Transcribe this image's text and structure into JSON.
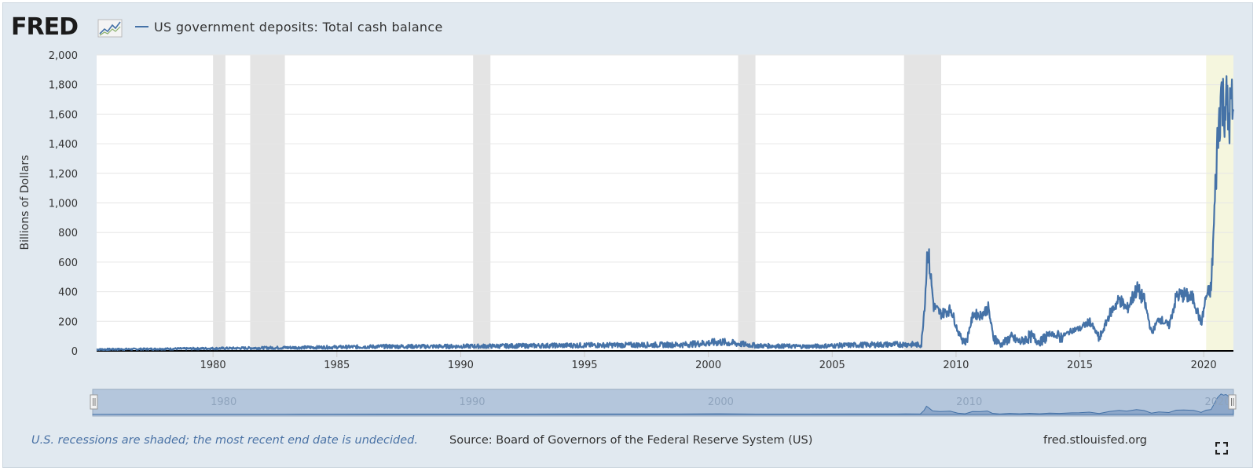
{
  "logo": {
    "text": "FRED",
    "icon": "fred-chart-icon"
  },
  "chart_data": {
    "type": "line",
    "series": [
      {
        "name": "US government deposits: Total cash balance",
        "color": "#4572a7"
      }
    ],
    "ylabel": "Billions of Dollars",
    "xlabel": "",
    "ylim": [
      0,
      2000
    ],
    "yticks": [
      "2,000",
      "1,800",
      "1,600",
      "1,400",
      "1,200",
      "1,000",
      "800",
      "600",
      "400",
      "200",
      "0"
    ],
    "ytick_values": [
      2000,
      1800,
      1600,
      1400,
      1200,
      1000,
      800,
      600,
      400,
      200,
      0
    ],
    "xlim": [
      1975.3,
      2021.2
    ],
    "xticks": [
      "1980",
      "1985",
      "1990",
      "1995",
      "2000",
      "2005",
      "2010",
      "2015",
      "2020"
    ],
    "xtick_values": [
      1980,
      1985,
      1990,
      1995,
      2000,
      2005,
      2010,
      2015,
      2020
    ],
    "points": [
      [
        1975.3,
        10
      ],
      [
        1977,
        12
      ],
      [
        1979,
        15
      ],
      [
        1981,
        18
      ],
      [
        1983,
        22
      ],
      [
        1985,
        25
      ],
      [
        1987,
        30
      ],
      [
        1989,
        30
      ],
      [
        1991,
        32
      ],
      [
        1993,
        35
      ],
      [
        1995,
        38
      ],
      [
        1997,
        40
      ],
      [
        1999,
        42
      ],
      [
        2000.5,
        60
      ],
      [
        2002,
        35
      ],
      [
        2004,
        30
      ],
      [
        2006,
        40
      ],
      [
        2008.0,
        45
      ],
      [
        2008.6,
        40
      ],
      [
        2008.75,
        350
      ],
      [
        2008.85,
        700
      ],
      [
        2008.95,
        550
      ],
      [
        2009.1,
        300
      ],
      [
        2009.4,
        250
      ],
      [
        2009.8,
        280
      ],
      [
        2010.1,
        120
      ],
      [
        2010.4,
        60
      ],
      [
        2010.7,
        250
      ],
      [
        2011.0,
        240
      ],
      [
        2011.3,
        290
      ],
      [
        2011.5,
        100
      ],
      [
        2011.8,
        40
      ],
      [
        2012.2,
        90
      ],
      [
        2012.6,
        60
      ],
      [
        2013.0,
        100
      ],
      [
        2013.4,
        60
      ],
      [
        2013.8,
        120
      ],
      [
        2014.2,
        90
      ],
      [
        2014.7,
        140
      ],
      [
        2015.0,
        150
      ],
      [
        2015.4,
        200
      ],
      [
        2015.8,
        80
      ],
      [
        2016.2,
        250
      ],
      [
        2016.6,
        350
      ],
      [
        2016.9,
        280
      ],
      [
        2017.3,
        420
      ],
      [
        2017.6,
        340
      ],
      [
        2017.9,
        120
      ],
      [
        2018.2,
        220
      ],
      [
        2018.6,
        170
      ],
      [
        2018.9,
        370
      ],
      [
        2019.2,
        380
      ],
      [
        2019.6,
        350
      ],
      [
        2019.9,
        180
      ],
      [
        2020.1,
        370
      ],
      [
        2020.3,
        420
      ],
      [
        2020.45,
        1000
      ],
      [
        2020.55,
        1400
      ],
      [
        2020.7,
        1750
      ],
      [
        2020.8,
        1650
      ],
      [
        2020.9,
        1700
      ],
      [
        2021.0,
        1550
      ],
      [
        2021.1,
        1650
      ],
      [
        2021.2,
        1620
      ]
    ],
    "recessions": [
      [
        1980.0,
        1980.5
      ],
      [
        1981.5,
        1982.9
      ],
      [
        1990.5,
        1991.2
      ],
      [
        2001.2,
        2001.9
      ],
      [
        2007.9,
        2009.4
      ]
    ],
    "recession_undecided": [
      2020.1,
      2021.2
    ],
    "grid": "horizontal",
    "legend": "top-left"
  },
  "navigator": {
    "labels": [
      "1980",
      "1990",
      "2000",
      "2010",
      "2020"
    ],
    "label_values": [
      1980,
      1990,
      2000,
      2010,
      2020
    ]
  },
  "footer": {
    "note": "U.S. recessions are shaded; the most recent end date is undecided.",
    "source": "Source: Board of Governors of the Federal Reserve System (US)",
    "site": "fred.stlouisfed.org"
  },
  "colors": {
    "line": "#4572a7",
    "recession": "#e4e4e4",
    "undecided": "#f5f6de",
    "background": "#e1e9f0"
  }
}
